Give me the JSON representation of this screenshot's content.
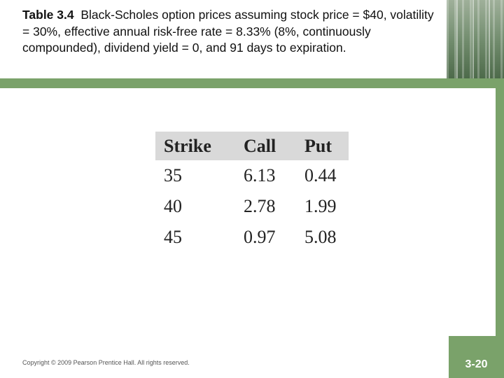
{
  "title": {
    "label": "Table 3.4",
    "text": "Black-Scholes option prices assuming stock price = $40, volatility = 30%, effective annual risk-free rate = 8.33% (8%, continuously compounded), dividend yield = 0, and 91 days to expiration."
  },
  "table": {
    "headers": [
      "Strike",
      "Call",
      "Put"
    ],
    "rows": [
      [
        "35",
        "6.13",
        "0.44"
      ],
      [
        "40",
        "2.78",
        "1.99"
      ],
      [
        "45",
        "0.97",
        "5.08"
      ]
    ]
  },
  "footer": {
    "copyright": "Copyright © 2009 Pearson Prentice Hall. All rights reserved.",
    "slide_number": "3-20"
  },
  "colors": {
    "accent": "#7aa26a",
    "header_fill": "#d9d9d9"
  }
}
